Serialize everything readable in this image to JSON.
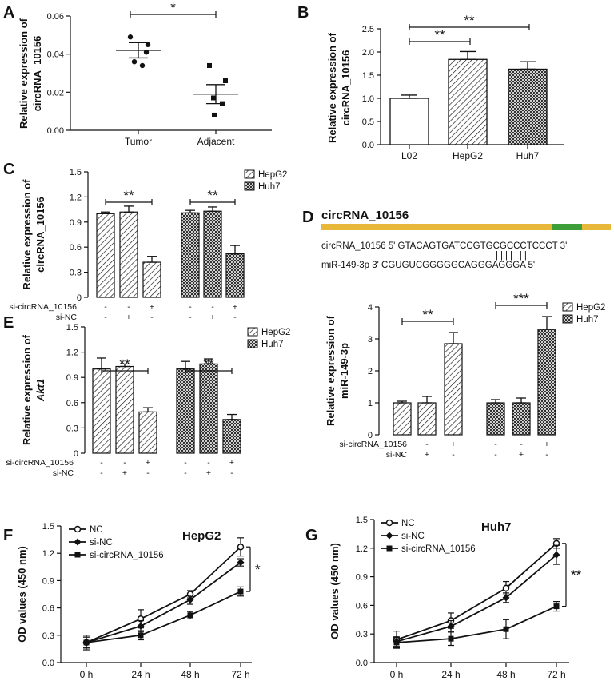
{
  "colors": {
    "ink": "#111111",
    "band": "#E8B83A",
    "band_highlight": "#3D9E3A"
  },
  "chart_data": [
    {
      "panel": "A",
      "type": "scatter",
      "ylabel_line1": "Relative expression of",
      "ylabel_line2": "circRNA_10156",
      "ylim": [
        0,
        0.06
      ],
      "yticks": [
        "0.00",
        "0.02",
        "0.04",
        "0.06"
      ],
      "categories": [
        "Tumor",
        "Adjacent"
      ],
      "points": [
        [
          0.049,
          0.045,
          0.041,
          0.036,
          0.034
        ],
        [
          0.034,
          0.026,
          0.017,
          0.014,
          0.008
        ]
      ],
      "mean": [
        0.042,
        0.019
      ],
      "sem": [
        0.004,
        0.005
      ],
      "significance": "*"
    },
    {
      "panel": "B",
      "type": "bar",
      "ylabel_line1": "Relative expression of",
      "ylabel_line2": "circRNA_10156",
      "ylim": [
        0,
        2.5
      ],
      "yticks": [
        "0.0",
        "0.5",
        "1.0",
        "1.5",
        "2.0",
        "2.5"
      ],
      "categories": [
        "L02",
        "HepG2",
        "Huh7"
      ],
      "values": [
        1.0,
        1.84,
        1.63
      ],
      "errors": [
        0.07,
        0.17,
        0.16
      ],
      "significance": [
        "**",
        "**"
      ]
    },
    {
      "panel": "C",
      "type": "bar",
      "ylabel_line1": "Relative expression of",
      "ylabel_line2": "circRNA_10156",
      "ylim": [
        0,
        1.5
      ],
      "yticks": [
        "0",
        "0.3",
        "0.6",
        "0.9",
        "1.2",
        "1.5"
      ],
      "legend": [
        "HepG2",
        "Huh7"
      ],
      "series": [
        {
          "name": "HepG2",
          "values": [
            1.0,
            1.02,
            0.42
          ],
          "errors": [
            0.02,
            0.07,
            0.07
          ]
        },
        {
          "name": "Huh7",
          "values": [
            1.01,
            1.03,
            0.52
          ],
          "errors": [
            0.03,
            0.05,
            0.1
          ]
        }
      ],
      "condition_labels": [
        "si-circRNA_10156",
        "si-NC"
      ],
      "condition_rows": [
        [
          "-",
          "-",
          "+"
        ],
        [
          "-",
          "+",
          "-"
        ]
      ],
      "significance": [
        "**",
        "**"
      ]
    },
    {
      "panel": "D",
      "type": "bar",
      "header": "circRNA_10156",
      "seq_top": "circRNA_10156  5' GTACAGTGATCCGTGCGCCCTCCCT 3'",
      "seq_pairs": "|||||||",
      "seq_bottom": "miR-149-3p            3' CGUGUCGGGGGCAGGGAGGGA 5'",
      "ylabel_line1": "Relative expression of",
      "ylabel_line2": "miR-149-3p",
      "ylim": [
        0,
        4
      ],
      "yticks": [
        "0",
        "1",
        "2",
        "3",
        "4"
      ],
      "legend": [
        "HepG2",
        "Huh7"
      ],
      "series": [
        {
          "name": "HepG2",
          "values": [
            1.0,
            1.0,
            2.85
          ],
          "errors": [
            0.05,
            0.2,
            0.35
          ]
        },
        {
          "name": "Huh7",
          "values": [
            1.0,
            1.0,
            3.3
          ],
          "errors": [
            0.1,
            0.15,
            0.4
          ]
        }
      ],
      "condition_labels": [
        "si-circRNA_10156",
        "si-NC"
      ],
      "condition_rows": [
        [
          "-",
          "-",
          "+"
        ],
        [
          "-",
          "+",
          "-"
        ]
      ],
      "significance": [
        "**",
        "***"
      ]
    },
    {
      "panel": "E",
      "type": "bar",
      "ylabel_line1": "Relative expression of",
      "ylabel_line2": "Akt1",
      "ylim": [
        0,
        1.5
      ],
      "yticks": [
        "0",
        "0.3",
        "0.6",
        "0.9",
        "1.2",
        "1.5"
      ],
      "legend": [
        "HepG2",
        "Huh7"
      ],
      "series": [
        {
          "name": "HepG2",
          "values": [
            1.0,
            1.03,
            0.49
          ],
          "errors": [
            0.13,
            0.03,
            0.05
          ]
        },
        {
          "name": "Huh7",
          "values": [
            1.0,
            1.06,
            0.4
          ],
          "errors": [
            0.09,
            0.06,
            0.06
          ]
        }
      ],
      "condition_labels": [
        "si-circRNA_10156",
        "si-NC"
      ],
      "condition_rows": [
        [
          "-",
          "-",
          "+"
        ],
        [
          "-",
          "+",
          "-"
        ]
      ],
      "significance": [
        "**",
        "**"
      ]
    },
    {
      "panel": "F",
      "type": "line",
      "title": "HepG2",
      "ylabel": "OD values (450 nm)",
      "ylim": [
        0,
        1.5
      ],
      "yticks": [
        "0.0",
        "0.3",
        "0.6",
        "0.9",
        "1.2",
        "1.5"
      ],
      "categories": [
        "0 h",
        "24 h",
        "48 h",
        "72 h"
      ],
      "series": [
        {
          "name": "NC",
          "values": [
            0.22,
            0.48,
            0.75,
            1.27
          ],
          "errors": [
            0.08,
            0.1,
            0.04,
            0.1
          ]
        },
        {
          "name": "si-NC",
          "values": [
            0.22,
            0.4,
            0.69,
            1.1
          ],
          "errors": [
            0.06,
            0.06,
            0.05,
            0.04
          ]
        },
        {
          "name": "si-circRNA_10156",
          "values": [
            0.22,
            0.3,
            0.52,
            0.78
          ],
          "errors": [
            0.06,
            0.05,
            0.04,
            0.05
          ]
        }
      ],
      "significance": "*"
    },
    {
      "panel": "G",
      "type": "line",
      "title": "Huh7",
      "ylabel": "OD values (450 nm)",
      "ylim": [
        0,
        1.5
      ],
      "yticks": [
        "0.0",
        "0.3",
        "0.6",
        "0.9",
        "1.2",
        "1.5"
      ],
      "categories": [
        "0 h",
        "24 h",
        "48 h",
        "72 h"
      ],
      "series": [
        {
          "name": "NC",
          "values": [
            0.24,
            0.44,
            0.78,
            1.25
          ],
          "errors": [
            0.09,
            0.08,
            0.07,
            0.05
          ]
        },
        {
          "name": "si-NC",
          "values": [
            0.22,
            0.38,
            0.68,
            1.13
          ],
          "errors": [
            0.05,
            0.06,
            0.05,
            0.1
          ]
        },
        {
          "name": "si-circRNA_10156",
          "values": [
            0.21,
            0.25,
            0.35,
            0.59
          ],
          "errors": [
            0.05,
            0.07,
            0.1,
            0.05
          ]
        }
      ],
      "significance": "**"
    }
  ]
}
